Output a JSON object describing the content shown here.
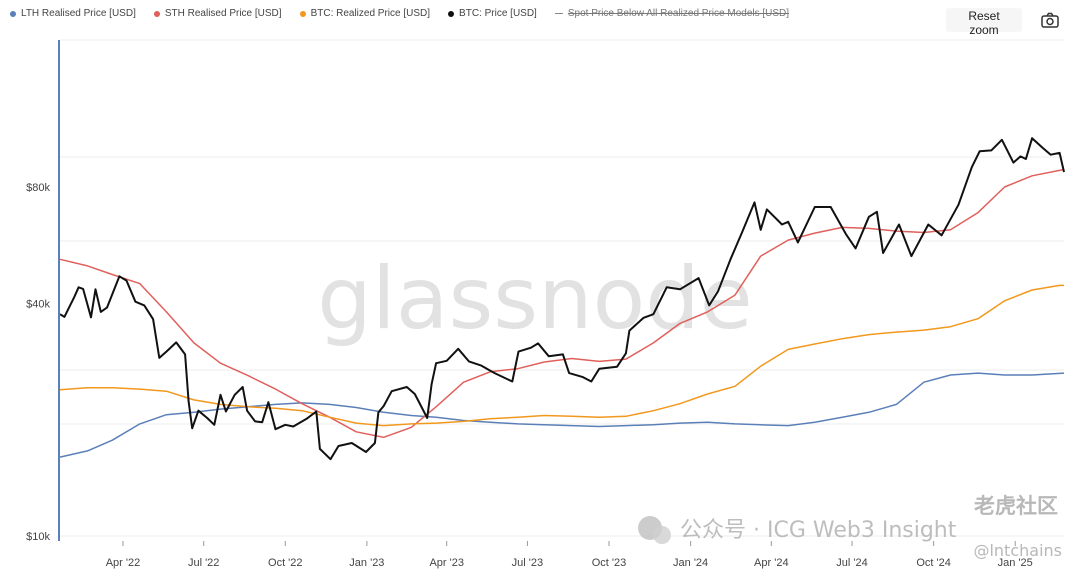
{
  "legend": [
    {
      "label": "LTH Realised Price [USD]",
      "color": "#5b7fb8",
      "enabled": true
    },
    {
      "label": "STH Realised Price [USD]",
      "color": "#e0605c",
      "enabled": true
    },
    {
      "label": "BTC: Realized Price [USD]",
      "color": "#f2981d",
      "enabled": true
    },
    {
      "label": "BTC: Price [USD]",
      "color": "#111111",
      "enabled": true
    },
    {
      "label": "Spot Price Below All Realized Price Models [USD]",
      "color": "#888888",
      "enabled": false
    }
  ],
  "toolbar": {
    "reset_zoom_label": "Reset zoom",
    "camera_icon": "camera-icon"
  },
  "watermark": {
    "brand": "glassnode",
    "wechat": "公众号 · ICG Web3 Insight",
    "site": "老虎社区",
    "handle": "@lntchains"
  },
  "chart_data": {
    "type": "line",
    "y_scale": "log",
    "ylim": [
      10000,
      120000
    ],
    "y_ticks": [
      {
        "value": 10000,
        "label": "$10k"
      },
      {
        "value": 40000,
        "label": "$40k"
      },
      {
        "value": 80000,
        "label": "$80k"
      }
    ],
    "x_range": [
      "2022-01-20",
      "2025-02-25"
    ],
    "x_ticks": [
      {
        "date": "2022-04-01",
        "label": "Apr '22"
      },
      {
        "date": "2022-07-01",
        "label": "Jul '22"
      },
      {
        "date": "2022-10-01",
        "label": "Oct '22"
      },
      {
        "date": "2023-01-01",
        "label": "Jan '23"
      },
      {
        "date": "2023-04-01",
        "label": "Apr '23"
      },
      {
        "date": "2023-07-01",
        "label": "Jul '23"
      },
      {
        "date": "2023-10-01",
        "label": "Oct '23"
      },
      {
        "date": "2024-01-01",
        "label": "Jan '24"
      },
      {
        "date": "2024-04-01",
        "label": "Apr '24"
      },
      {
        "date": "2024-07-01",
        "label": "Jul '24"
      },
      {
        "date": "2024-10-01",
        "label": "Oct '24"
      },
      {
        "date": "2025-01-01",
        "label": "Jan '25"
      }
    ],
    "grid": true,
    "series": [
      {
        "name": "LTH Realised Price [USD]",
        "color": "#5b7fb8",
        "width": 1.5,
        "points": [
          [
            "2022-01-20",
            16000
          ],
          [
            "2022-02-20",
            16600
          ],
          [
            "2022-03-20",
            17700
          ],
          [
            "2022-04-20",
            19500
          ],
          [
            "2022-05-20",
            20600
          ],
          [
            "2022-06-20",
            20900
          ],
          [
            "2022-07-20",
            21300
          ],
          [
            "2022-08-20",
            21600
          ],
          [
            "2022-09-20",
            21900
          ],
          [
            "2022-10-20",
            22100
          ],
          [
            "2022-11-20",
            21900
          ],
          [
            "2022-12-20",
            21500
          ],
          [
            "2023-01-20",
            20900
          ],
          [
            "2023-02-20",
            20500
          ],
          [
            "2023-03-20",
            20300
          ],
          [
            "2023-04-20",
            19900
          ],
          [
            "2023-05-20",
            19700
          ],
          [
            "2023-06-20",
            19500
          ],
          [
            "2023-07-20",
            19400
          ],
          [
            "2023-08-20",
            19300
          ],
          [
            "2023-09-20",
            19200
          ],
          [
            "2023-10-20",
            19300
          ],
          [
            "2023-11-20",
            19400
          ],
          [
            "2023-12-20",
            19600
          ],
          [
            "2024-01-20",
            19700
          ],
          [
            "2024-02-20",
            19500
          ],
          [
            "2024-03-20",
            19400
          ],
          [
            "2024-04-20",
            19300
          ],
          [
            "2024-05-20",
            19700
          ],
          [
            "2024-06-20",
            20300
          ],
          [
            "2024-07-20",
            20900
          ],
          [
            "2024-08-20",
            21900
          ],
          [
            "2024-09-20",
            25000
          ],
          [
            "2024-10-20",
            26100
          ],
          [
            "2024-11-20",
            26400
          ],
          [
            "2024-12-20",
            26100
          ],
          [
            "2025-01-20",
            26100
          ],
          [
            "2025-02-25",
            26400
          ]
        ]
      },
      {
        "name": "STH Realised Price [USD]",
        "color": "#e0605c",
        "width": 1.5,
        "points": [
          [
            "2022-01-20",
            52000
          ],
          [
            "2022-02-20",
            50000
          ],
          [
            "2022-03-20",
            47500
          ],
          [
            "2022-04-20",
            45000
          ],
          [
            "2022-05-20",
            38000
          ],
          [
            "2022-06-20",
            31600
          ],
          [
            "2022-07-20",
            28000
          ],
          [
            "2022-08-20",
            26000
          ],
          [
            "2022-09-20",
            24000
          ],
          [
            "2022-10-20",
            22000
          ],
          [
            "2022-11-20",
            20300
          ],
          [
            "2022-12-20",
            18600
          ],
          [
            "2023-01-20",
            18000
          ],
          [
            "2023-02-20",
            19100
          ],
          [
            "2023-03-20",
            21600
          ],
          [
            "2023-04-20",
            25000
          ],
          [
            "2023-05-20",
            26600
          ],
          [
            "2023-06-20",
            27100
          ],
          [
            "2023-07-20",
            28200
          ],
          [
            "2023-08-20",
            28800
          ],
          [
            "2023-09-20",
            28300
          ],
          [
            "2023-10-20",
            28700
          ],
          [
            "2023-11-20",
            31600
          ],
          [
            "2023-12-20",
            35500
          ],
          [
            "2024-01-20",
            38000
          ],
          [
            "2024-02-20",
            42000
          ],
          [
            "2024-03-20",
            53000
          ],
          [
            "2024-04-20",
            58300
          ],
          [
            "2024-05-20",
            60800
          ],
          [
            "2024-06-20",
            62900
          ],
          [
            "2024-07-20",
            62500
          ],
          [
            "2024-08-20",
            61500
          ],
          [
            "2024-09-20",
            61000
          ],
          [
            "2024-10-20",
            62000
          ],
          [
            "2024-11-20",
            68700
          ],
          [
            "2024-12-20",
            80000
          ],
          [
            "2025-01-20",
            85500
          ],
          [
            "2025-02-20",
            88300
          ],
          [
            "2025-02-25",
            88800
          ]
        ]
      },
      {
        "name": "BTC: Realized Price [USD]",
        "color": "#f2981d",
        "width": 1.5,
        "points": [
          [
            "2022-01-20",
            23900
          ],
          [
            "2022-02-20",
            24200
          ],
          [
            "2022-03-20",
            24200
          ],
          [
            "2022-04-20",
            24000
          ],
          [
            "2022-05-20",
            23700
          ],
          [
            "2022-06-20",
            22500
          ],
          [
            "2022-07-20",
            21900
          ],
          [
            "2022-08-20",
            21600
          ],
          [
            "2022-09-20",
            21400
          ],
          [
            "2022-10-20",
            21100
          ],
          [
            "2022-11-20",
            20300
          ],
          [
            "2022-12-20",
            19600
          ],
          [
            "2023-01-20",
            19300
          ],
          [
            "2023-02-20",
            19500
          ],
          [
            "2023-03-20",
            19600
          ],
          [
            "2023-04-20",
            19800
          ],
          [
            "2023-05-20",
            20100
          ],
          [
            "2023-06-20",
            20300
          ],
          [
            "2023-07-20",
            20500
          ],
          [
            "2023-08-20",
            20400
          ],
          [
            "2023-09-20",
            20300
          ],
          [
            "2023-10-20",
            20400
          ],
          [
            "2023-11-20",
            21100
          ],
          [
            "2023-12-20",
            22000
          ],
          [
            "2024-01-20",
            23300
          ],
          [
            "2024-02-20",
            24400
          ],
          [
            "2024-03-20",
            27500
          ],
          [
            "2024-04-20",
            30400
          ],
          [
            "2024-05-20",
            31400
          ],
          [
            "2024-06-20",
            32400
          ],
          [
            "2024-07-20",
            33200
          ],
          [
            "2024-08-20",
            33700
          ],
          [
            "2024-09-20",
            34100
          ],
          [
            "2024-10-20",
            34800
          ],
          [
            "2024-11-20",
            36500
          ],
          [
            "2024-12-20",
            40600
          ],
          [
            "2025-01-20",
            43300
          ],
          [
            "2025-02-20",
            44500
          ],
          [
            "2025-02-25",
            44500
          ]
        ]
      },
      {
        "name": "BTC: Price [USD]",
        "color": "#111111",
        "width": 2,
        "points": [
          [
            "2022-01-20",
            37500
          ],
          [
            "2022-01-25",
            36900
          ],
          [
            "2022-02-05",
            41500
          ],
          [
            "2022-02-10",
            44000
          ],
          [
            "2022-02-15",
            43600
          ],
          [
            "2022-02-24",
            36800
          ],
          [
            "2022-03-01",
            43500
          ],
          [
            "2022-03-07",
            38000
          ],
          [
            "2022-03-14",
            39000
          ],
          [
            "2022-03-28",
            47000
          ],
          [
            "2022-04-05",
            45800
          ],
          [
            "2022-04-15",
            40400
          ],
          [
            "2022-04-25",
            39500
          ],
          [
            "2022-05-05",
            36400
          ],
          [
            "2022-05-12",
            28900
          ],
          [
            "2022-05-20",
            30000
          ],
          [
            "2022-05-31",
            31700
          ],
          [
            "2022-06-10",
            29500
          ],
          [
            "2022-06-14",
            22300
          ],
          [
            "2022-06-18",
            19000
          ],
          [
            "2022-06-25",
            21100
          ],
          [
            "2022-07-05",
            20200
          ],
          [
            "2022-07-13",
            19400
          ],
          [
            "2022-07-20",
            23200
          ],
          [
            "2022-07-26",
            21000
          ],
          [
            "2022-08-05",
            23200
          ],
          [
            "2022-08-14",
            24300
          ],
          [
            "2022-08-19",
            21100
          ],
          [
            "2022-08-28",
            19800
          ],
          [
            "2022-09-05",
            19700
          ],
          [
            "2022-09-12",
            22200
          ],
          [
            "2022-09-20",
            18900
          ],
          [
            "2022-10-01",
            19400
          ],
          [
            "2022-10-10",
            19200
          ],
          [
            "2022-10-25",
            20100
          ],
          [
            "2022-11-05",
            21000
          ],
          [
            "2022-11-09",
            16800
          ],
          [
            "2022-11-21",
            15800
          ],
          [
            "2022-11-30",
            17100
          ],
          [
            "2022-12-15",
            17400
          ],
          [
            "2022-12-31",
            16500
          ],
          [
            "2023-01-10",
            17400
          ],
          [
            "2023-01-14",
            20900
          ],
          [
            "2023-01-20",
            21700
          ],
          [
            "2023-01-29",
            23700
          ],
          [
            "2023-02-15",
            24300
          ],
          [
            "2023-02-24",
            23300
          ],
          [
            "2023-03-10",
            20200
          ],
          [
            "2023-03-15",
            24700
          ],
          [
            "2023-03-20",
            28000
          ],
          [
            "2023-04-01",
            28400
          ],
          [
            "2023-04-14",
            30500
          ],
          [
            "2023-04-26",
            28300
          ],
          [
            "2023-05-10",
            27600
          ],
          [
            "2023-05-25",
            26400
          ],
          [
            "2023-06-14",
            25100
          ],
          [
            "2023-06-21",
            30000
          ],
          [
            "2023-07-05",
            30700
          ],
          [
            "2023-07-13",
            31500
          ],
          [
            "2023-07-25",
            29200
          ],
          [
            "2023-08-10",
            29500
          ],
          [
            "2023-08-17",
            26400
          ],
          [
            "2023-09-01",
            25800
          ],
          [
            "2023-09-11",
            25100
          ],
          [
            "2023-09-20",
            27100
          ],
          [
            "2023-10-10",
            27400
          ],
          [
            "2023-10-20",
            29700
          ],
          [
            "2023-10-24",
            34000
          ],
          [
            "2023-11-09",
            36700
          ],
          [
            "2023-11-20",
            37500
          ],
          [
            "2023-12-05",
            44000
          ],
          [
            "2023-12-20",
            43500
          ],
          [
            "2024-01-10",
            46500
          ],
          [
            "2024-01-22",
            39500
          ],
          [
            "2024-02-01",
            43000
          ],
          [
            "2024-02-15",
            52000
          ],
          [
            "2024-02-28",
            61000
          ],
          [
            "2024-03-13",
            73000
          ],
          [
            "2024-03-20",
            62000
          ],
          [
            "2024-03-27",
            70000
          ],
          [
            "2024-04-13",
            64000
          ],
          [
            "2024-04-20",
            65000
          ],
          [
            "2024-05-01",
            57500
          ],
          [
            "2024-05-20",
            71000
          ],
          [
            "2024-06-07",
            71000
          ],
          [
            "2024-06-24",
            60500
          ],
          [
            "2024-07-05",
            55500
          ],
          [
            "2024-07-20",
            67000
          ],
          [
            "2024-07-29",
            69000
          ],
          [
            "2024-08-05",
            54000
          ],
          [
            "2024-08-23",
            64000
          ],
          [
            "2024-09-06",
            53000
          ],
          [
            "2024-09-25",
            64000
          ],
          [
            "2024-10-10",
            60000
          ],
          [
            "2024-10-29",
            72000
          ],
          [
            "2024-11-13",
            90000
          ],
          [
            "2024-11-22",
            99000
          ],
          [
            "2024-12-05",
            99500
          ],
          [
            "2024-12-17",
            106000
          ],
          [
            "2024-12-30",
            92500
          ],
          [
            "2025-01-07",
            96000
          ],
          [
            "2025-01-13",
            94500
          ],
          [
            "2025-01-20",
            107000
          ],
          [
            "2025-02-01",
            101000
          ],
          [
            "2025-02-10",
            97000
          ],
          [
            "2025-02-20",
            98000
          ],
          [
            "2025-02-25",
            87500
          ]
        ]
      }
    ]
  }
}
